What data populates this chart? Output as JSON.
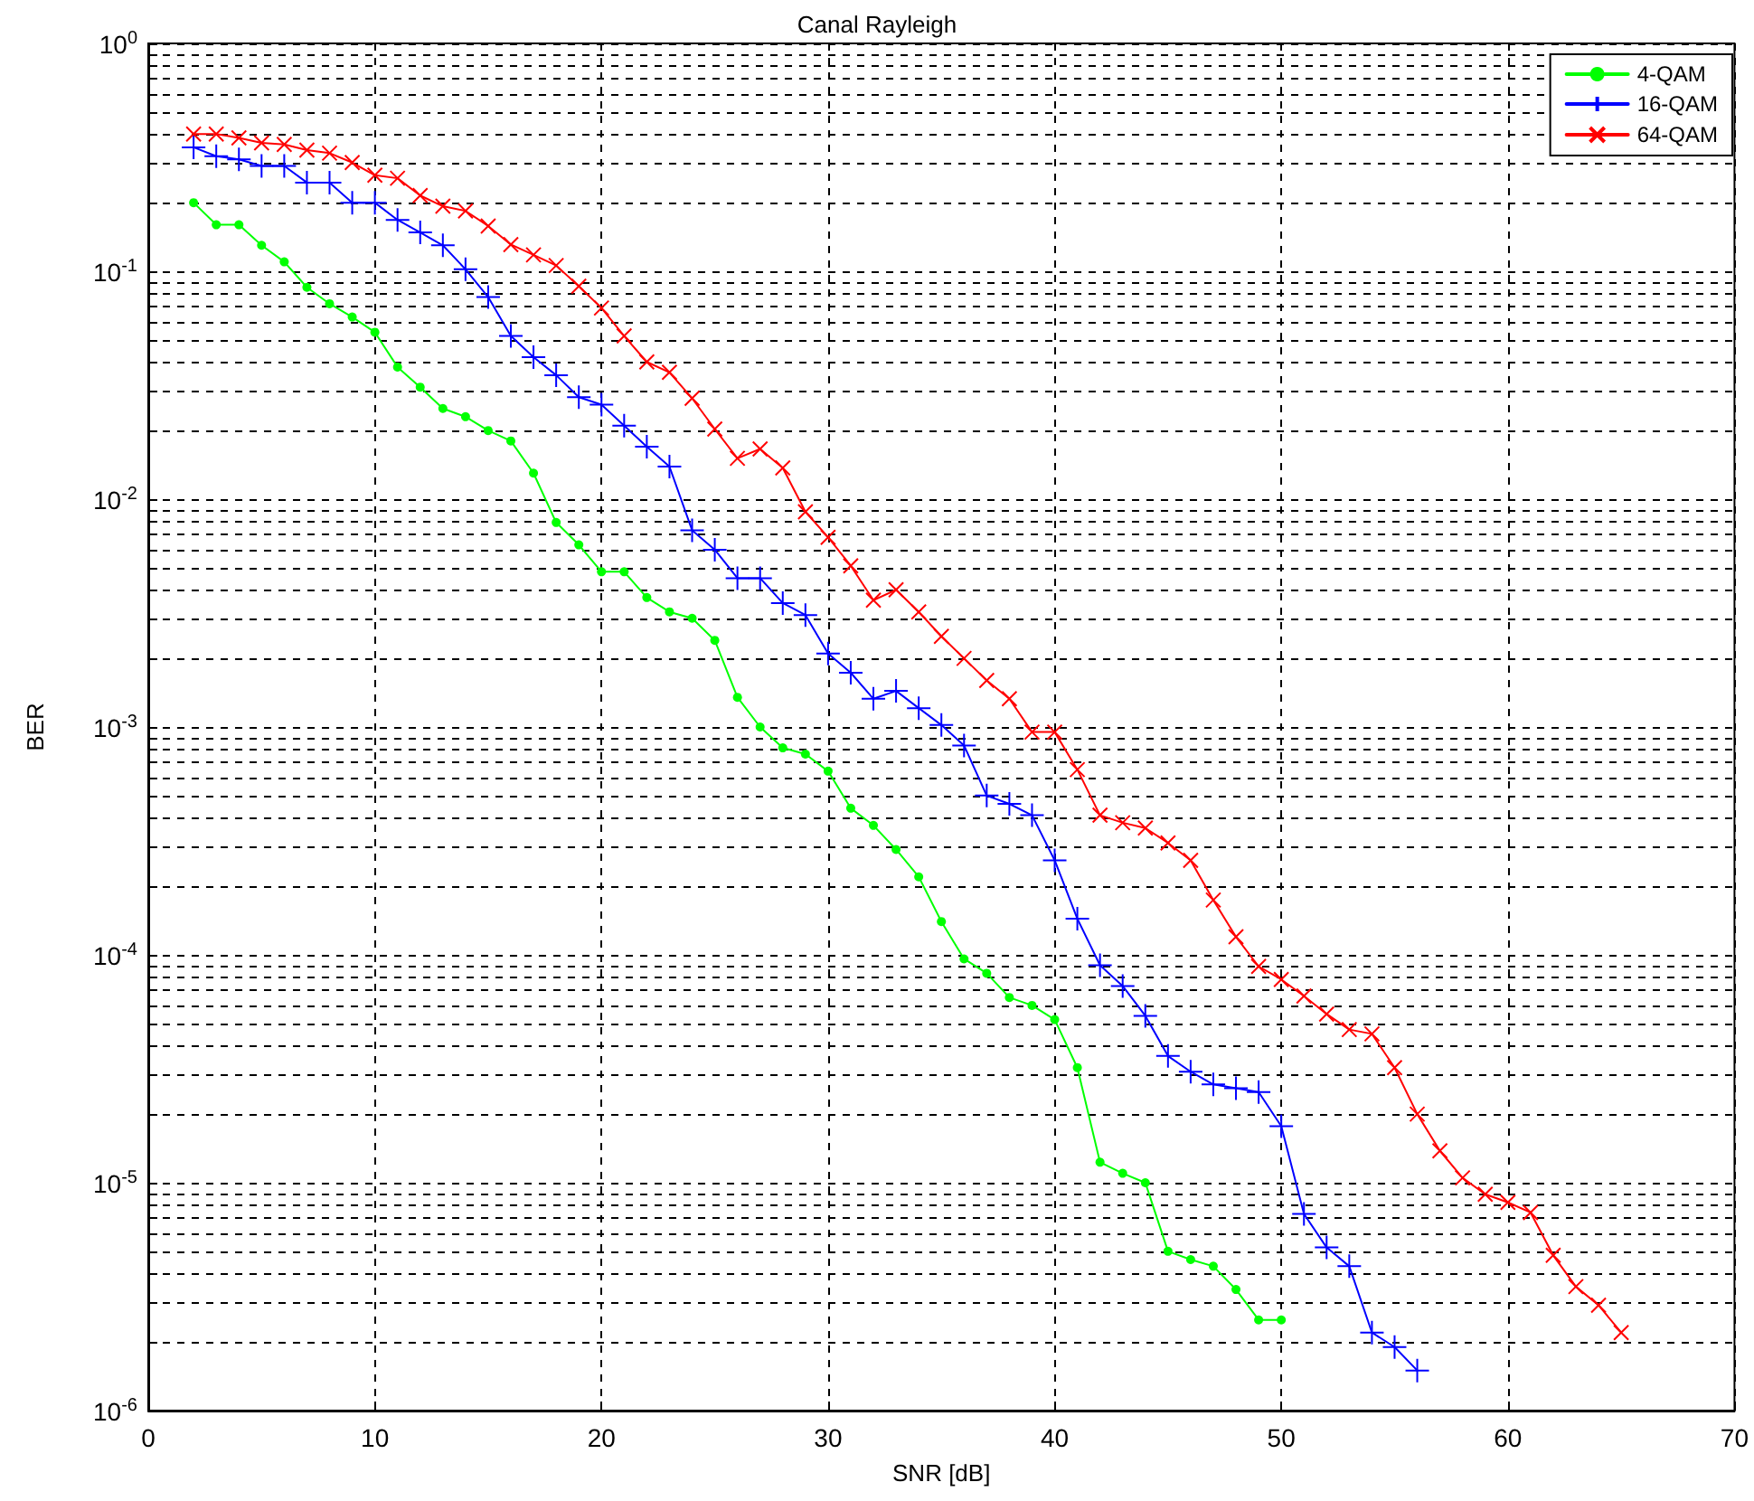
{
  "chart_data": {
    "type": "line",
    "title": "Canal Rayleigh",
    "xlabel": "SNR [dB]",
    "ylabel": "BER",
    "x": [
      2,
      3,
      4,
      5,
      6,
      7,
      8,
      9,
      10,
      11,
      12,
      13,
      14,
      15,
      16,
      17,
      18,
      19,
      20,
      21,
      22,
      23,
      24,
      25,
      26,
      27,
      28,
      29,
      30,
      31,
      32,
      33,
      34,
      35,
      36,
      37,
      38,
      39,
      40,
      41,
      42,
      43,
      44,
      45,
      46,
      47,
      48,
      49,
      50,
      51,
      52,
      53,
      54,
      55,
      56,
      57,
      58,
      59,
      60,
      61,
      62,
      63,
      64,
      65
    ],
    "series": [
      {
        "name": "4-QAM",
        "color": "#00ff00",
        "marker": "circle",
        "values": [
          0.2,
          0.16,
          0.16,
          0.13,
          0.11,
          0.085,
          0.072,
          0.063,
          0.054,
          0.038,
          0.031,
          0.025,
          0.023,
          0.02,
          0.018,
          0.013,
          0.0079,
          0.0063,
          0.0048,
          0.0048,
          0.0037,
          0.0032,
          0.003,
          0.0024,
          0.00135,
          0.001,
          0.00081,
          0.00076,
          0.00064,
          0.00044,
          0.00037,
          0.00029,
          0.00022,
          0.00014,
          9.6e-05,
          8.3e-05,
          6.5e-05,
          6e-05,
          5.2e-05,
          3.2e-05,
          1.23e-05,
          1.1e-05,
          1e-05,
          5e-06,
          4.6e-06,
          4.3e-06,
          3.4e-06,
          2.5e-06,
          2.5e-06,
          null,
          null,
          null,
          null,
          null,
          null,
          null,
          null,
          null,
          null,
          null,
          null,
          null,
          null,
          null
        ]
      },
      {
        "name": "16-QAM",
        "color": "#0000ff",
        "marker": "plus",
        "values": [
          0.35,
          0.32,
          0.31,
          0.29,
          0.29,
          0.245,
          0.245,
          0.2,
          0.2,
          0.168,
          0.148,
          0.13,
          0.102,
          0.077,
          0.052,
          0.042,
          0.035,
          0.028,
          0.026,
          0.021,
          0.017,
          0.0139,
          0.0073,
          0.006,
          0.0045,
          0.0045,
          0.0035,
          0.0031,
          0.0021,
          0.00173,
          0.00133,
          0.00144,
          0.00121,
          0.00102,
          0.00083,
          0.0005,
          0.00046,
          0.00041,
          0.00026,
          0.000144,
          9e-05,
          7.3e-05,
          5.4e-05,
          3.6e-05,
          3.07e-05,
          2.7e-05,
          2.6e-05,
          2.5e-05,
          1.77e-05,
          7.3e-06,
          5.2e-06,
          4.3e-06,
          2.2e-06,
          1.9e-06,
          1.5e-06,
          null,
          null,
          null,
          null,
          null,
          null,
          null,
          null,
          null
        ]
      },
      {
        "name": "64-QAM",
        "color": "#ff0000",
        "marker": "cross",
        "values": [
          0.4,
          0.4,
          0.385,
          0.366,
          0.36,
          0.34,
          0.33,
          0.3,
          0.264,
          0.256,
          0.215,
          0.193,
          0.184,
          0.158,
          0.131,
          0.118,
          0.106,
          0.086,
          0.069,
          0.052,
          0.04,
          0.036,
          0.0277,
          0.0203,
          0.0151,
          0.0166,
          0.0137,
          0.0088,
          0.0068,
          0.0051,
          0.0036,
          0.004,
          0.0032,
          0.0025,
          0.002,
          0.0016,
          0.00133,
          0.00095,
          0.00095,
          0.00065,
          0.00041,
          0.00038,
          0.00036,
          0.00031,
          0.00026,
          0.000174,
          0.00012,
          8.9e-05,
          7.8e-05,
          6.6e-05,
          5.5e-05,
          4.7e-05,
          4.5e-05,
          3.2e-05,
          2e-05,
          1.38e-05,
          1.05e-05,
          8.9e-06,
          8.2e-06,
          7.4e-06,
          4.8e-06,
          3.5e-06,
          2.9e-06,
          2.2e-06
        ]
      }
    ],
    "xlim": [
      0,
      70
    ],
    "xticks": [
      0,
      10,
      20,
      30,
      40,
      50,
      60,
      70
    ],
    "ylim": [
      1e-06,
      1
    ],
    "log": "y",
    "yticks": [
      {
        "value": 1,
        "label": "10$^{0}$"
      },
      {
        "value": 0.1,
        "label": "10$^{-1}$"
      },
      {
        "value": 0.01,
        "label": "10$^{-2}$"
      },
      {
        "value": 0.001,
        "label": "10$^{-3}$"
      },
      {
        "value": 0.0001,
        "label": "10$^{-4}$"
      },
      {
        "value": 1e-05,
        "label": "10$^{-5}$"
      },
      {
        "value": 1e-06,
        "label": "10$^{-6}$"
      }
    ],
    "grid": true,
    "legend": "top right",
    "line_style": "solid"
  }
}
